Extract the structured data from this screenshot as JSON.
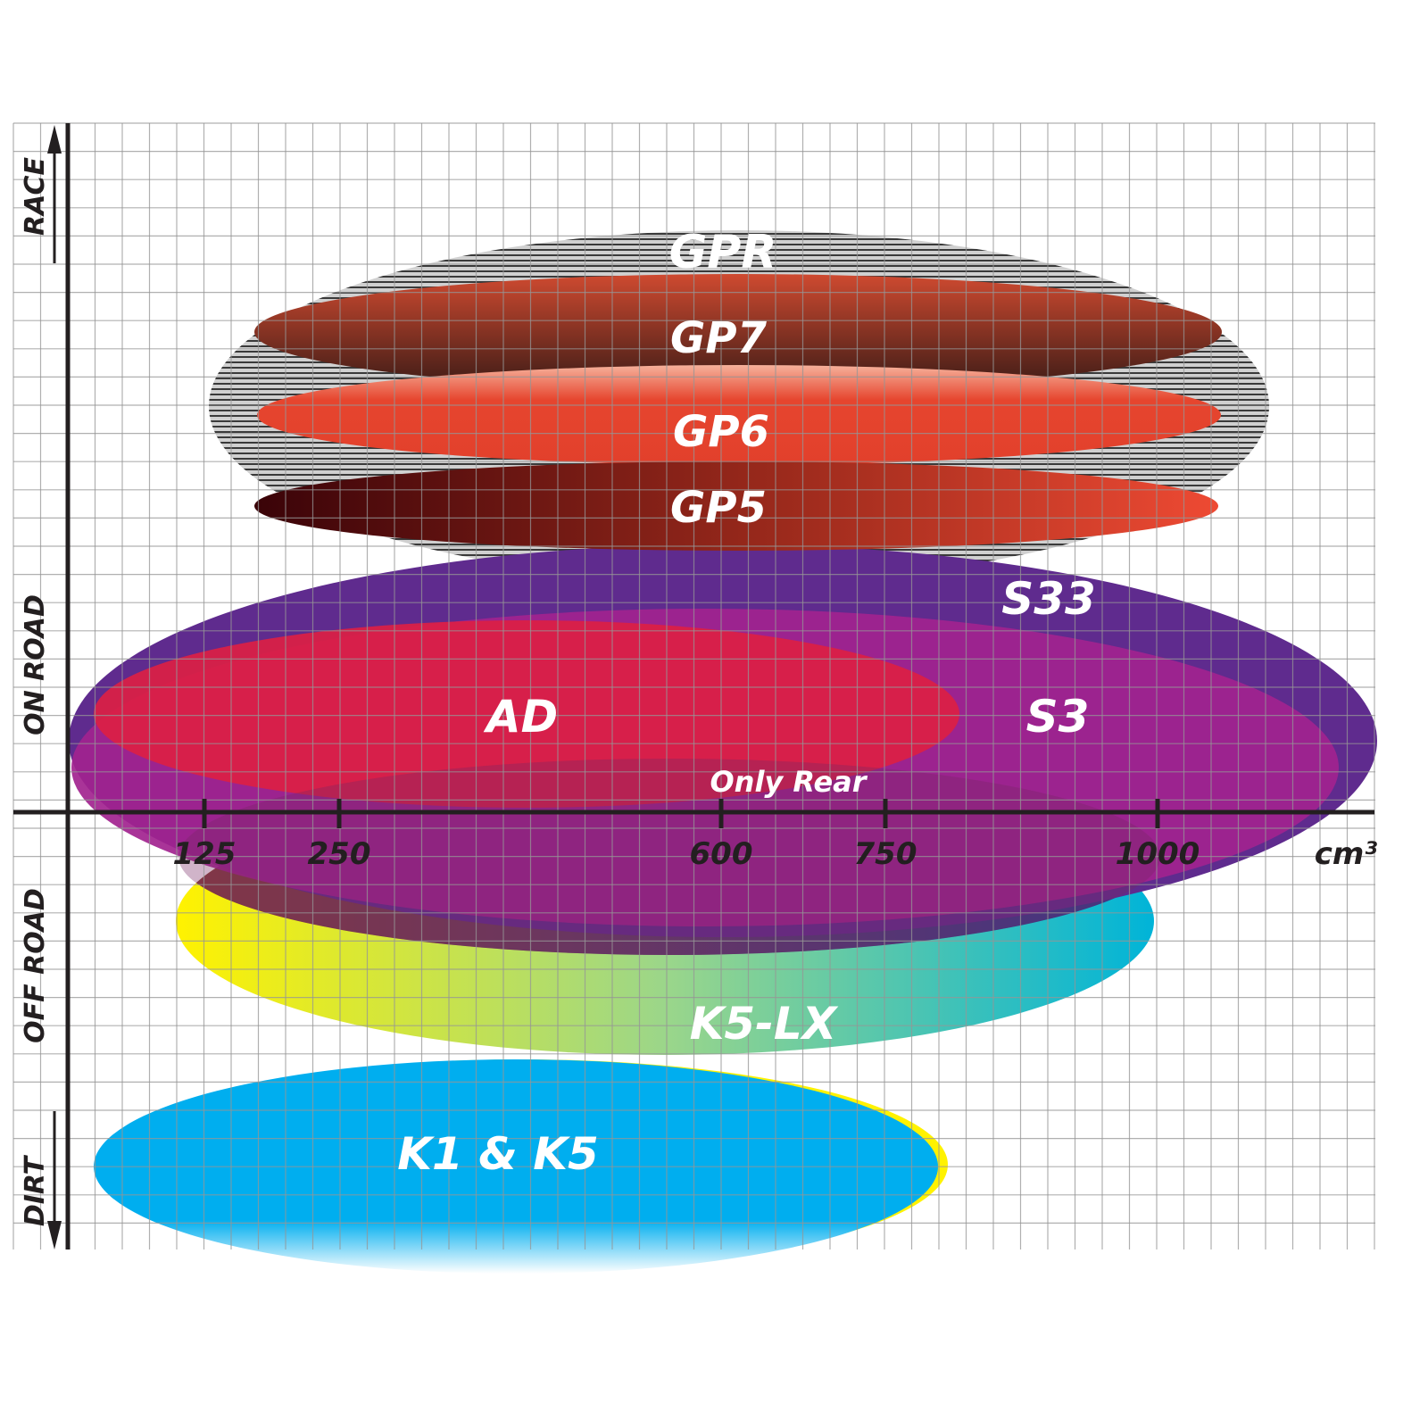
{
  "chart_data": {
    "type": "diagram",
    "x_axis": {
      "unit_label": "cm³",
      "ticks": [
        {
          "value": 125,
          "label": "125"
        },
        {
          "value": 250,
          "label": "250"
        },
        {
          "value": 600,
          "label": "600"
        },
        {
          "value": 750,
          "label": "750"
        },
        {
          "value": 1000,
          "label": "1000"
        }
      ]
    },
    "y_axis": {
      "categories": [
        "RACE",
        "ON ROAD",
        "OFF ROAD",
        "DIRT"
      ]
    },
    "grid": true,
    "regions": [
      {
        "id": "gpr",
        "label": "GPR",
        "colors": [
          "#c8c8c8",
          "#3a3a3a"
        ]
      },
      {
        "id": "gp7",
        "label": "GP7",
        "colors": [
          "#c9462f",
          "#3d1d17"
        ]
      },
      {
        "id": "gp6",
        "label": "GP6",
        "colors": [
          "#f3a08a",
          "#e2402c"
        ]
      },
      {
        "id": "gp5",
        "label": "GP5",
        "colors": [
          "#3a0308",
          "#ee4a33"
        ]
      },
      {
        "id": "s33",
        "label": "S33",
        "colors": [
          "#5f2b8e"
        ]
      },
      {
        "id": "s3",
        "label": "S3",
        "colors": [
          "#a2238f"
        ]
      },
      {
        "id": "ad",
        "label": "AD",
        "colors": [
          "#dc1f44"
        ]
      },
      {
        "id": "only-rear",
        "label": "Only Rear",
        "colors": [
          "#8e2a86"
        ]
      },
      {
        "id": "k5lx",
        "label": "K5-LX",
        "colors": [
          "#fff200",
          "#00b4d8",
          "#2b2f8c"
        ]
      },
      {
        "id": "k1k5",
        "label": "K1 & K5",
        "colors": [
          "#00aeef",
          "#fff200"
        ]
      }
    ]
  }
}
